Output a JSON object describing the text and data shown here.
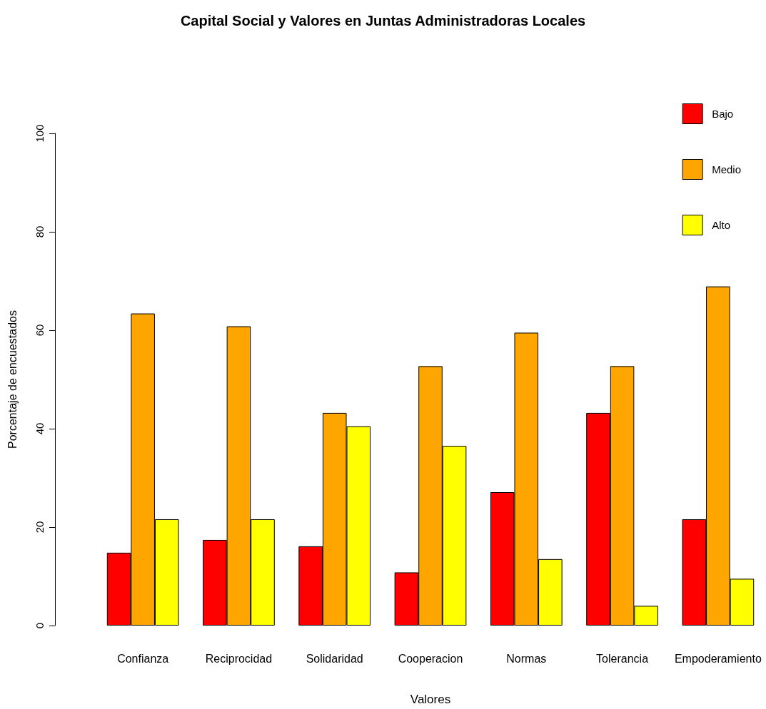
{
  "chart_data": {
    "type": "bar",
    "title": "Capital Social y Valores en Juntas Administradoras Locales",
    "xlabel": "Valores",
    "ylabel": "Porcentaje de encuestados",
    "categories": [
      "Confianza",
      "Reciprocidad",
      "Solidaridad",
      "Cooperacion",
      "Normas",
      "Tolerancia",
      "Empoderamiento"
    ],
    "series": [
      {
        "name": "Bajo",
        "color": "#ff0000",
        "values": [
          14.8,
          17.4,
          16.1,
          10.8,
          27.1,
          43.2,
          21.6
        ]
      },
      {
        "name": "Medio",
        "color": "#ffa500",
        "values": [
          63.4,
          60.8,
          43.2,
          52.7,
          59.5,
          52.7,
          68.9
        ]
      },
      {
        "name": "Alto",
        "color": "#ffff00",
        "values": [
          21.6,
          21.6,
          40.5,
          36.5,
          13.5,
          4.0,
          9.5
        ]
      }
    ],
    "ylim": [
      0,
      100
    ],
    "yticks": [
      0,
      20,
      40,
      60,
      80,
      100
    ],
    "grid": false,
    "legend": "top right"
  }
}
